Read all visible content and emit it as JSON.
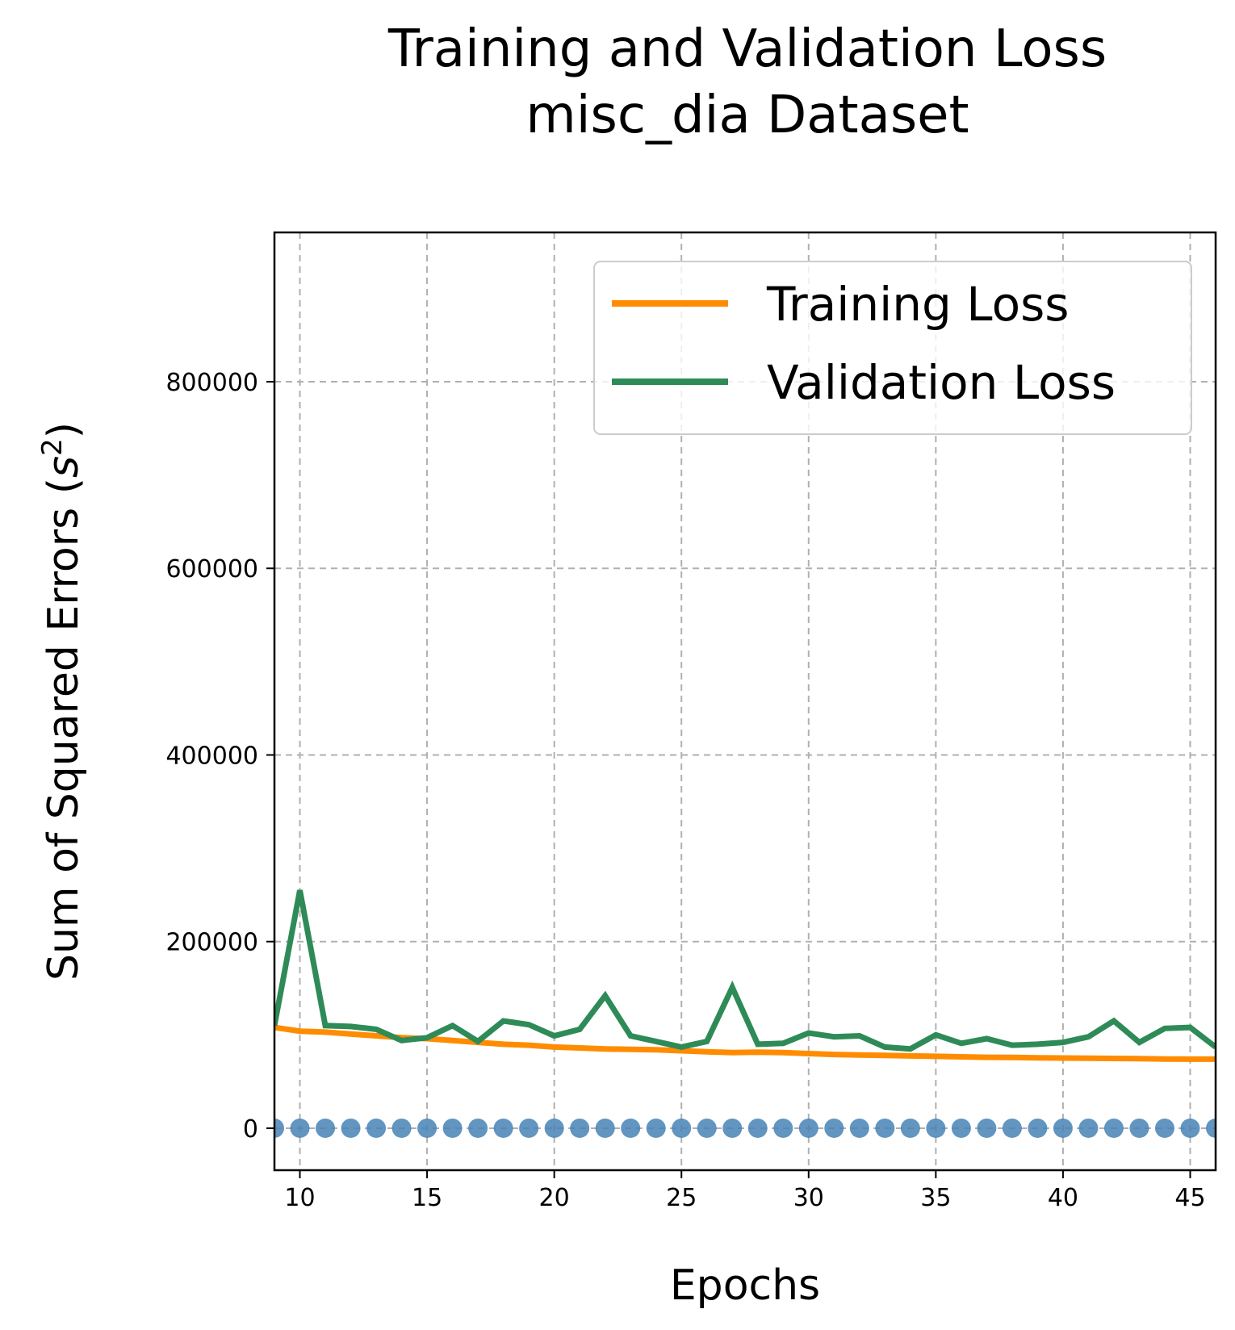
{
  "chart_data": {
    "type": "line",
    "title": [
      "Training and Validation Loss",
      "misc_dia Dataset"
    ],
    "xlabel": "Epochs",
    "ylabel": "Sum of Squared Errors (",
    "ylabel_var": "s",
    "ylabel_exp": "2",
    "ylabel_close": ")",
    "xlim": [
      9,
      46
    ],
    "ylim": [
      -45000,
      960000
    ],
    "xticks": [
      "10",
      "15",
      "20",
      "25",
      "30",
      "35",
      "40",
      "45"
    ],
    "yticks": [
      "0",
      "200000",
      "400000",
      "600000",
      "800000"
    ],
    "grid": true,
    "legend_position": "top-right",
    "x": [
      9,
      10,
      11,
      12,
      13,
      14,
      15,
      16,
      17,
      18,
      19,
      20,
      21,
      22,
      23,
      24,
      25,
      26,
      27,
      28,
      29,
      30,
      31,
      32,
      33,
      34,
      35,
      36,
      37,
      38,
      39,
      40,
      41,
      42,
      43,
      44,
      45,
      46
    ],
    "series": [
      {
        "name": "Training Loss",
        "color": "#ff8c00",
        "values": [
          108000,
          104000,
          103000,
          101000,
          99000,
          97000,
          96000,
          94000,
          92000,
          90000,
          89000,
          87000,
          86000,
          85000,
          84500,
          84000,
          83000,
          82000,
          81000,
          81500,
          81000,
          80000,
          79000,
          78500,
          78000,
          77500,
          77000,
          76500,
          76000,
          75800,
          75500,
          75200,
          75000,
          74800,
          74500,
          74200,
          74000,
          74000
        ]
      },
      {
        "name": "Validation Loss",
        "color": "#2e8b57",
        "values": [
          110000,
          255000,
          110000,
          109000,
          106000,
          94000,
          97000,
          110000,
          93000,
          115000,
          111000,
          99000,
          106000,
          142000,
          99000,
          93000,
          87000,
          93000,
          151000,
          90000,
          91000,
          102000,
          98000,
          99000,
          87000,
          85000,
          100000,
          91000,
          96000,
          89000,
          90000,
          92000,
          98000,
          115000,
          92000,
          107000,
          108000,
          87000
        ]
      },
      {
        "name": "",
        "color": "#4682b4",
        "marker": "circle",
        "values": [
          0,
          0,
          0,
          0,
          0,
          0,
          0,
          0,
          0,
          0,
          0,
          0,
          0,
          0,
          0,
          0,
          0,
          0,
          0,
          0,
          0,
          0,
          0,
          0,
          0,
          0,
          0,
          0,
          0,
          0,
          0,
          0,
          0,
          0,
          0,
          0,
          0,
          0
        ]
      }
    ]
  }
}
